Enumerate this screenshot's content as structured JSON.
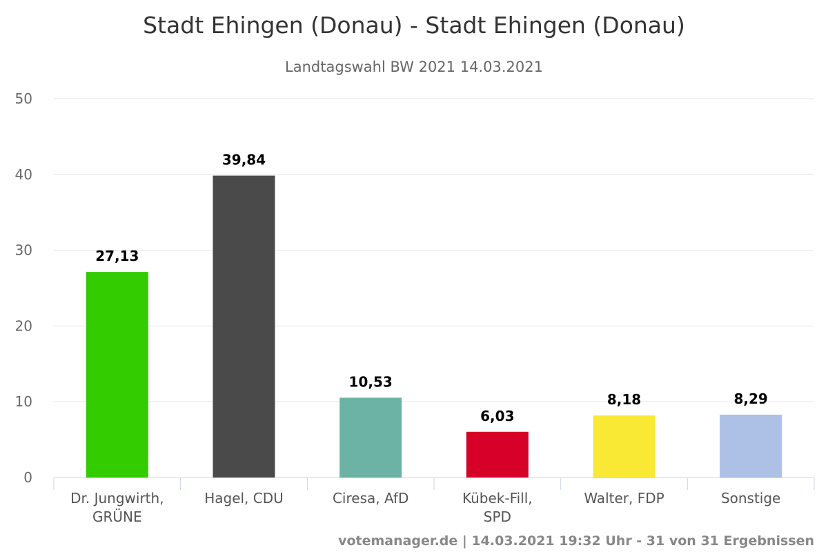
{
  "chart_data": {
    "type": "bar",
    "title": "Stadt Ehingen (Donau) - Stadt Ehingen (Donau)",
    "subtitle": "Landtagswahl BW 2021 14.03.2021",
    "categories": [
      [
        "Dr. Jungwirth,",
        "GRÜNE"
      ],
      [
        "Hagel, CDU"
      ],
      [
        "Ciresa, AfD"
      ],
      [
        "Kübek-Fill,",
        "SPD"
      ],
      [
        "Walter, FDP"
      ],
      [
        "Sonstige"
      ]
    ],
    "values": [
      27.13,
      39.84,
      10.53,
      6.03,
      8.18,
      8.29
    ],
    "data_labels": [
      "27,13",
      "39,84",
      "10,53",
      "6,03",
      "8,18",
      "8,29"
    ],
    "colors": [
      "#33cc00",
      "#4a4a4a",
      "#6db3a5",
      "#d70028",
      "#f9e934",
      "#adc0e6"
    ],
    "ylim": [
      0,
      50
    ],
    "yticks": [
      "0",
      "10",
      "20",
      "30",
      "40",
      "50"
    ],
    "grid": true,
    "legend": "none",
    "xlabel": "",
    "ylabel": ""
  },
  "credit": "votemanager.de | 14.03.2021 19:32 Uhr - 31 von 31 Ergebnissen"
}
